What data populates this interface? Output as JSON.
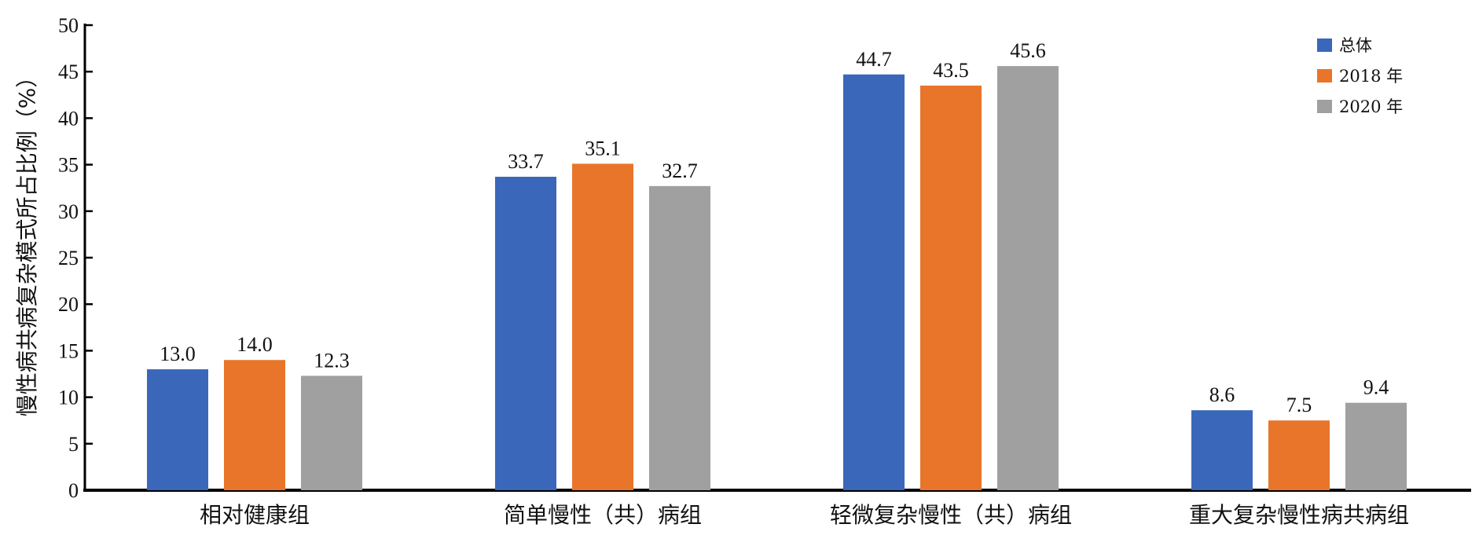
{
  "chart_data": {
    "type": "bar",
    "title": "",
    "xlabel": "",
    "ylabel": "慢性病共病复杂模式所占比例（%）",
    "ylim": [
      0,
      50
    ],
    "yticks": [
      0,
      5,
      10,
      15,
      20,
      25,
      30,
      35,
      40,
      45,
      50
    ],
    "grid": false,
    "legend_position": "top-right",
    "categories": [
      "相对健康组",
      "简单慢性（共）病组",
      "轻微复杂慢性（共）病组",
      "重大复杂慢性病共病组"
    ],
    "series": [
      {
        "name": "总体",
        "color": "#3A67BA",
        "values": [
          13.0,
          33.7,
          44.7,
          8.6
        ]
      },
      {
        "name": "2018 年",
        "color": "#E8752A",
        "values": [
          14.0,
          35.1,
          43.5,
          7.5
        ]
      },
      {
        "name": "2020 年",
        "color": "#A0A0A0",
        "values": [
          12.3,
          32.7,
          45.6,
          9.4
        ]
      }
    ]
  }
}
